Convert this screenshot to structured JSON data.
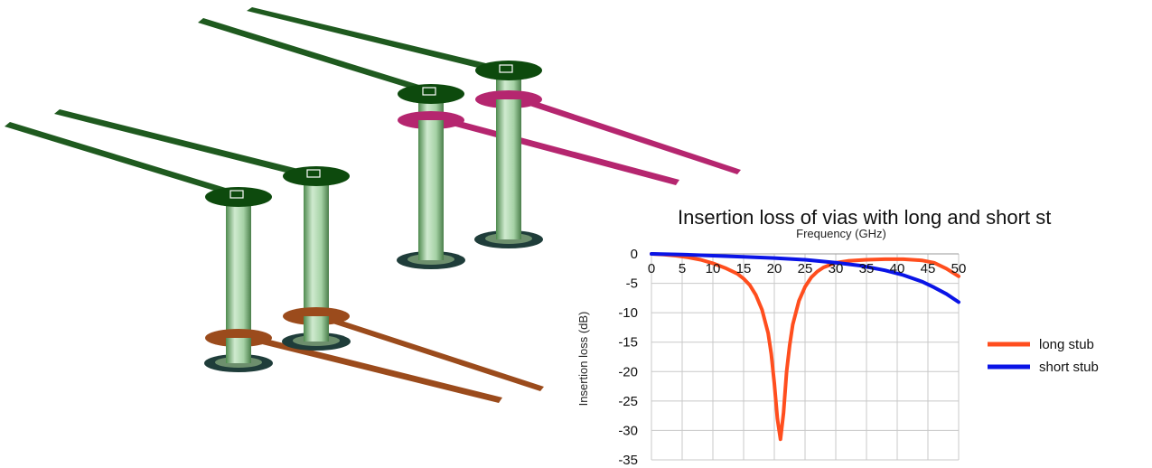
{
  "colors": {
    "long_stub": "#ff4e1e",
    "short_stub": "#0a14e6",
    "grid": "#c8c8c8",
    "trace_green": "#1f5a1f",
    "pad_green": "#0d4a0d",
    "via_body": "#9fcf9f",
    "trace_magenta": "#b5266f",
    "trace_brown": "#9b4b1c",
    "antipad": "#1f3d3a"
  },
  "chart_data": {
    "type": "line",
    "title": "Insertion loss of vias with long and short st",
    "xlabel": "Frequency (GHz)",
    "ylabel": "Insertion loss (dB)",
    "xlim": [
      0,
      50
    ],
    "ylim": [
      -35,
      0
    ],
    "x_ticks": [
      "0",
      "5",
      "10",
      "15",
      "20",
      "25",
      "30",
      "35",
      "40",
      "45",
      "50"
    ],
    "y_ticks": [
      "0",
      "-5",
      "-10",
      "-15",
      "-20",
      "-25",
      "-30",
      "-35"
    ],
    "grid": true,
    "legend_position": "right",
    "series": [
      {
        "name": "long stub",
        "color": "#ff4e1e",
        "x": [
          0,
          2,
          4,
          6,
          8,
          10,
          12,
          14,
          15,
          16,
          17,
          18,
          19,
          19.5,
          20,
          20.5,
          21,
          21.5,
          22,
          22.5,
          23,
          24,
          25,
          26,
          27,
          28,
          30,
          32,
          35,
          38,
          41,
          44,
          46,
          48,
          50
        ],
        "y": [
          0,
          -0.1,
          -0.3,
          -0.6,
          -1.0,
          -1.6,
          -2.4,
          -3.4,
          -4.2,
          -5.3,
          -7.0,
          -9.5,
          -13.5,
          -17.0,
          -22.0,
          -28.0,
          -31.5,
          -27.0,
          -20.0,
          -15.5,
          -12.0,
          -8.0,
          -5.6,
          -4.0,
          -3.0,
          -2.3,
          -1.5,
          -1.2,
          -1.0,
          -0.9,
          -0.9,
          -1.1,
          -1.5,
          -2.5,
          -3.8
        ]
      },
      {
        "name": "short stub",
        "color": "#0a14e6",
        "x": [
          0,
          5,
          10,
          15,
          20,
          25,
          30,
          34,
          38,
          41,
          44,
          46,
          48,
          50
        ],
        "y": [
          0,
          -0.1,
          -0.3,
          -0.5,
          -0.7,
          -1.0,
          -1.5,
          -2.0,
          -2.8,
          -3.6,
          -4.7,
          -5.7,
          -6.8,
          -8.2
        ]
      }
    ]
  }
}
